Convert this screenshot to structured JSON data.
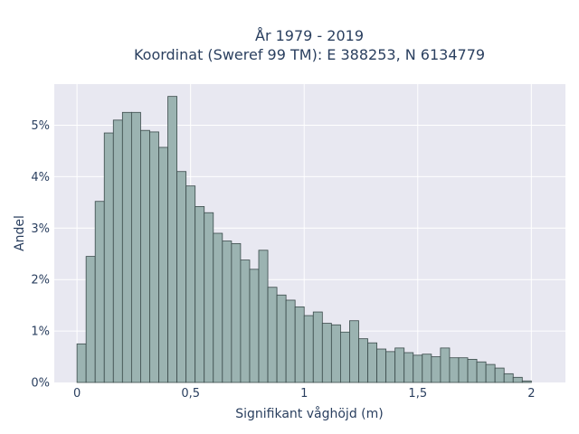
{
  "chart_data": {
    "type": "bar",
    "title": "År 1979 - 2019",
    "subtitle": "Koordinat (Sweref 99 TM): E 388253, N 6134779",
    "xlabel": "Signifikant våghöjd (m)",
    "ylabel": "Andel",
    "bin_width": 0.04,
    "x_start": 0.0,
    "xlim": [
      -0.1,
      2.15
    ],
    "ylim": [
      0,
      5.8
    ],
    "xticks": [
      0,
      0.5,
      1,
      1.5,
      2
    ],
    "xtick_labels": [
      "0",
      "0,5",
      "1",
      "1,5",
      "2"
    ],
    "yticks": [
      0,
      1,
      2,
      3,
      4,
      5
    ],
    "ytick_labels": [
      "0%",
      "1%",
      "2%",
      "3%",
      "4%",
      "5%"
    ],
    "grid": true,
    "colors": {
      "bar": "#9bb3b1",
      "bar_edge": "#3a4a4a",
      "plot_bg": "#e8e8f1",
      "grid": "#ffffff",
      "text": "#2a3f5f"
    },
    "values": [
      0.75,
      2.45,
      3.52,
      4.85,
      5.1,
      5.25,
      5.25,
      4.9,
      4.87,
      4.57,
      5.56,
      4.1,
      3.82,
      3.42,
      3.3,
      2.9,
      2.75,
      2.7,
      2.38,
      2.2,
      2.57,
      1.85,
      1.7,
      1.6,
      1.47,
      1.3,
      1.37,
      1.15,
      1.12,
      0.98,
      1.2,
      0.85,
      0.77,
      0.65,
      0.6,
      0.67,
      0.58,
      0.53,
      0.55,
      0.5,
      0.67,
      0.48,
      0.48,
      0.45,
      0.4,
      0.35,
      0.28,
      0.17,
      0.1,
      0.03
    ]
  }
}
